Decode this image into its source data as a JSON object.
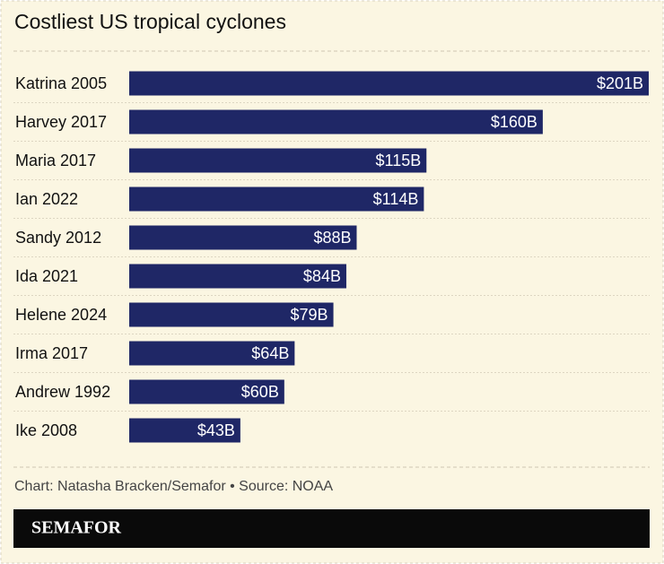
{
  "chart_data": {
    "type": "hbar",
    "title": "Costliest US tropical cyclones",
    "categories": [
      "Katrina 2005",
      "Harvey 2017",
      "Maria 2017",
      "Ian 2022",
      "Sandy 2012",
      "Ida 2021",
      "Helene 2024",
      "Irma 2017",
      "Andrew 1992",
      "Ike 2008"
    ],
    "values": [
      201,
      160,
      115,
      114,
      88,
      84,
      79,
      64,
      60,
      43
    ],
    "value_labels": [
      "$201B",
      "$160B",
      "$115B",
      "$114B",
      "$88B",
      "$84B",
      "$79B",
      "$64B",
      "$60B",
      "$43B"
    ],
    "color": "#1f2766",
    "source": "Chart: Natasha Bracken/Semafor • Source: NOAA",
    "brand": "SEMAFOR"
  }
}
